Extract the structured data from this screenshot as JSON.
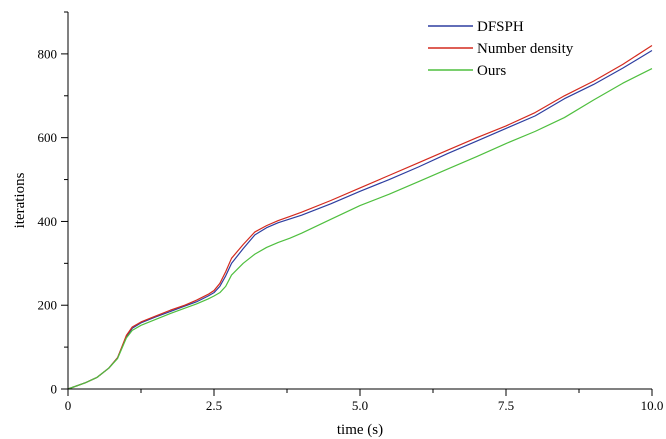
{
  "chart_data": {
    "type": "line",
    "title": "",
    "xlabel": "time (s)",
    "ylabel": "iterations",
    "xlim": [
      0,
      10
    ],
    "ylim": [
      0,
      900
    ],
    "x_ticks": [
      0,
      2.5,
      5.0,
      7.5,
      10.0
    ],
    "x_tick_labels": [
      "0",
      "2.5",
      "5.0",
      "7.5",
      "10.0"
    ],
    "y_ticks": [
      0,
      200,
      400,
      600,
      800
    ],
    "y_tick_labels": [
      "0",
      "200",
      "400",
      "600",
      "800"
    ],
    "grid": false,
    "legend_position": "top-right",
    "series": [
      {
        "name": "DFSPH",
        "color": "#2e3ea0",
        "x": [
          0,
          0.3,
          0.5,
          0.7,
          0.85,
          1.0,
          1.1,
          1.25,
          1.5,
          1.75,
          2.0,
          2.2,
          2.4,
          2.5,
          2.6,
          2.7,
          2.8,
          3.0,
          3.2,
          3.4,
          3.6,
          3.8,
          4.0,
          4.5,
          5.0,
          5.5,
          6.0,
          6.5,
          7.0,
          7.5,
          8.0,
          8.5,
          9.0,
          9.5,
          10.0
        ],
        "y": [
          0,
          15,
          28,
          50,
          75,
          125,
          145,
          158,
          172,
          185,
          198,
          208,
          222,
          230,
          245,
          270,
          300,
          335,
          368,
          385,
          397,
          406,
          415,
          442,
          472,
          500,
          530,
          562,
          592,
          622,
          652,
          693,
          727,
          766,
          808
        ]
      },
      {
        "name": "Number density",
        "color": "#d42a1e",
        "x": [
          0,
          0.3,
          0.5,
          0.7,
          0.85,
          1.0,
          1.1,
          1.25,
          1.5,
          1.75,
          2.0,
          2.2,
          2.4,
          2.5,
          2.6,
          2.7,
          2.8,
          3.0,
          3.2,
          3.4,
          3.6,
          3.8,
          4.0,
          4.5,
          5.0,
          5.5,
          6.0,
          6.5,
          7.0,
          7.5,
          8.0,
          8.5,
          9.0,
          9.5,
          10.0
        ],
        "y": [
          0,
          15,
          28,
          50,
          75,
          128,
          148,
          160,
          174,
          188,
          200,
          212,
          226,
          235,
          252,
          280,
          312,
          345,
          375,
          390,
          402,
          412,
          422,
          450,
          480,
          510,
          540,
          570,
          600,
          628,
          660,
          700,
          735,
          775,
          820
        ]
      },
      {
        "name": "Ours",
        "color": "#4fbf3f",
        "x": [
          0,
          0.3,
          0.5,
          0.7,
          0.85,
          1.0,
          1.1,
          1.25,
          1.5,
          1.75,
          2.0,
          2.2,
          2.4,
          2.5,
          2.6,
          2.7,
          2.8,
          3.0,
          3.2,
          3.4,
          3.6,
          3.8,
          4.0,
          4.5,
          5.0,
          5.5,
          6.0,
          6.5,
          7.0,
          7.5,
          8.0,
          8.5,
          9.0,
          9.5,
          10.0
        ],
        "y": [
          0,
          15,
          28,
          50,
          73,
          122,
          140,
          152,
          166,
          180,
          193,
          203,
          215,
          222,
          230,
          245,
          272,
          300,
          322,
          338,
          350,
          360,
          372,
          405,
          438,
          465,
          495,
          525,
          555,
          586,
          615,
          648,
          690,
          730,
          765
        ]
      }
    ]
  }
}
